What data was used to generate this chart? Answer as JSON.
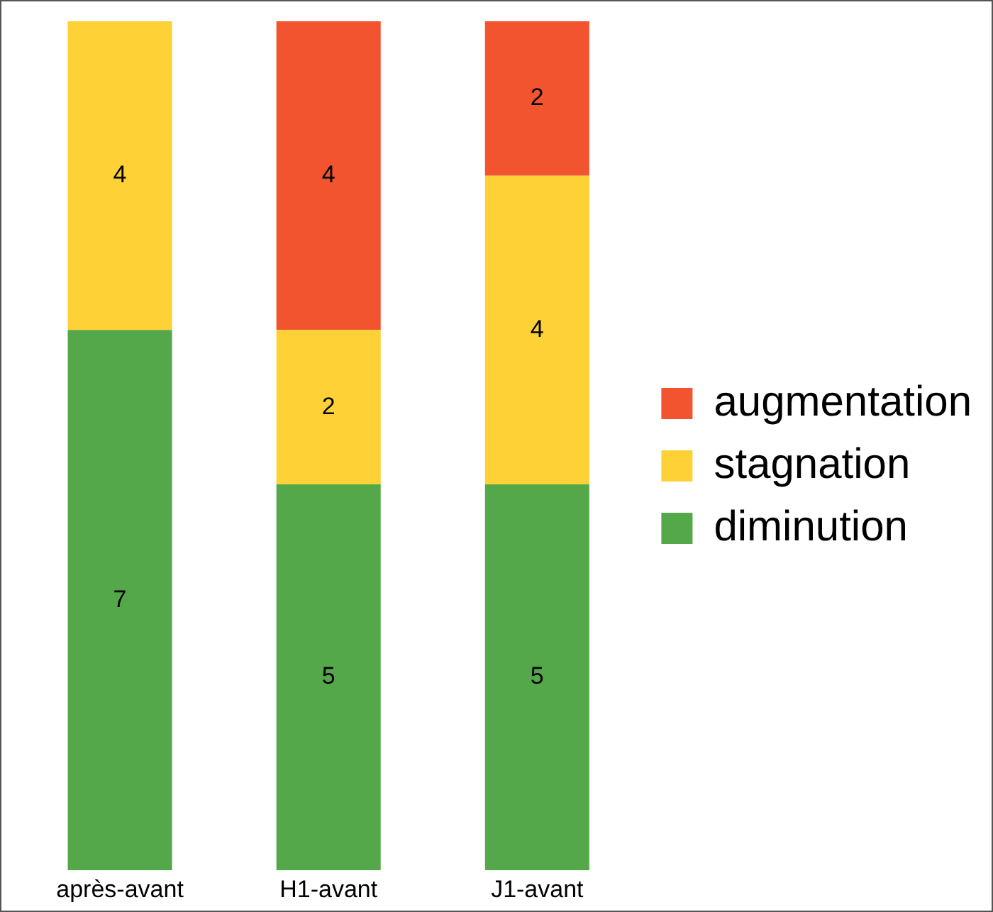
{
  "chart_data": {
    "type": "bar",
    "stacked": true,
    "categories": [
      "après-avant",
      "H1-avant",
      "J1-avant"
    ],
    "series": [
      {
        "name": "diminution",
        "color": "#55a84a",
        "values": [
          7,
          5,
          5
        ]
      },
      {
        "name": "stagnation",
        "color": "#fed136",
        "values": [
          4,
          2,
          4
        ]
      },
      {
        "name": "augmentation",
        "color": "#f25430",
        "values": [
          null,
          4,
          2
        ]
      }
    ],
    "data_labels": true,
    "legend": "right",
    "grid": false
  }
}
